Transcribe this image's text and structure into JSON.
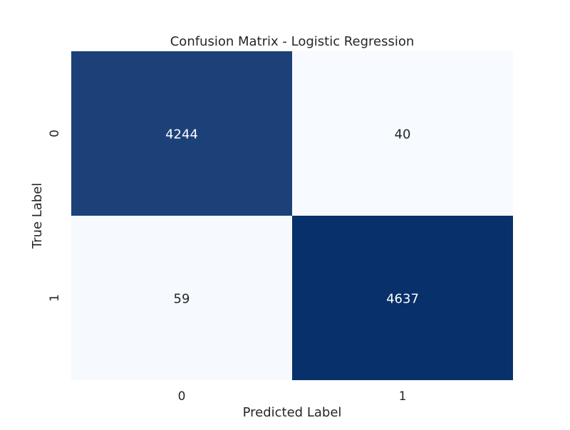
{
  "chart_data": {
    "type": "heatmap",
    "title": "Confusion Matrix - Logistic Regression",
    "xlabel": "Predicted Label",
    "ylabel": "True Label",
    "x_categories": [
      "0",
      "1"
    ],
    "y_categories": [
      "0",
      "1"
    ],
    "values": [
      [
        4244,
        40
      ],
      [
        59,
        4637
      ]
    ],
    "colormap": {
      "low": "#f7fbff",
      "high": "#08306b"
    },
    "annotation_colors": {
      "on_dark": "#ffffff",
      "on_light": "#262626"
    },
    "colorbar": false,
    "grid": false
  }
}
